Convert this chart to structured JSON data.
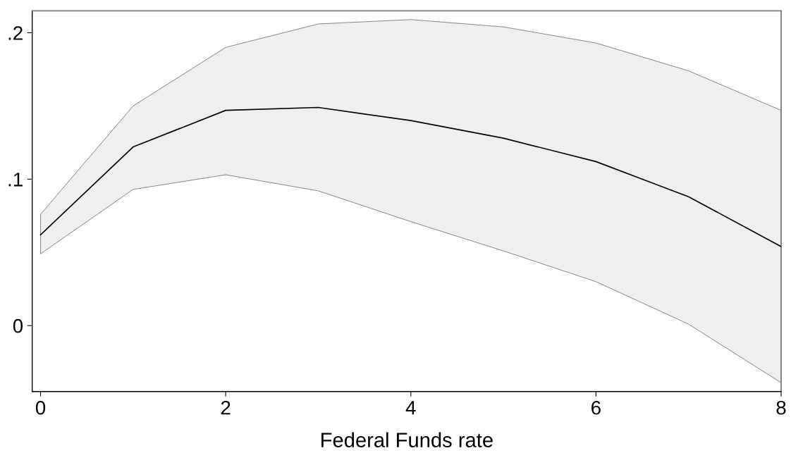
{
  "chart_data": {
    "type": "line",
    "xlabel": "Federal Funds rate",
    "x": [
      0,
      1,
      2,
      3,
      4,
      5,
      6,
      7,
      8
    ],
    "series": [
      {
        "color": "#000000",
        "values": [
          0.062,
          0.122,
          0.147,
          0.149,
          0.14,
          0.128,
          0.112,
          0.088,
          0.054
        ],
        "lower": [
          0.049,
          0.093,
          0.103,
          0.092,
          0.071,
          0.051,
          0.03,
          0.001,
          -0.039
        ],
        "upper": [
          0.076,
          0.15,
          0.19,
          0.206,
          0.209,
          0.204,
          0.193,
          0.174,
          0.147
        ]
      }
    ],
    "xlim": [
      -0.09,
      8
    ],
    "ylim": [
      -0.045,
      0.215
    ],
    "xticks": [
      0,
      2,
      4,
      6,
      8
    ],
    "yticks": [
      0,
      {
        "value": 0.1,
        "label": ".1"
      },
      {
        "value": 0.2,
        "label": ".2"
      }
    ]
  }
}
